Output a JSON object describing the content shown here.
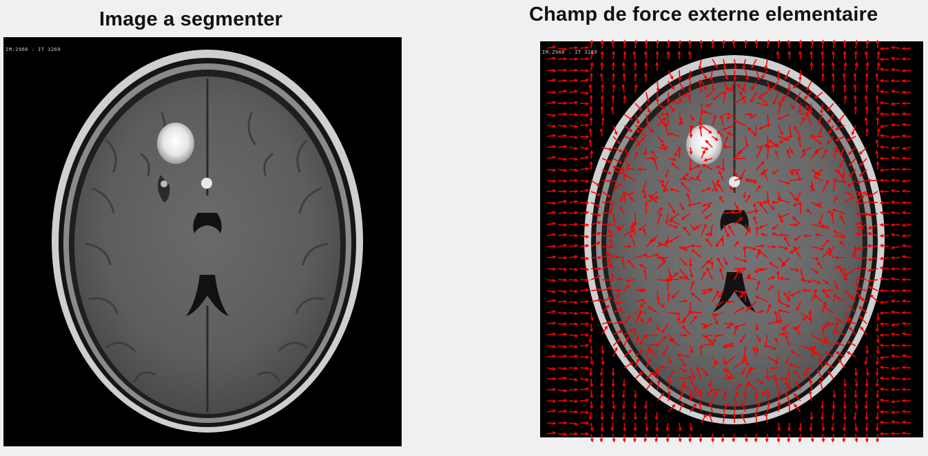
{
  "figure": {
    "left_panel": {
      "title": "Image a segmenter",
      "overlay_text": "IM:2966 : IT 3269"
    },
    "right_panel": {
      "title": "Champ de force externe elementaire",
      "overlay_text": "IM:2966 : IT 3269",
      "vector_color": "#ff0000"
    }
  }
}
